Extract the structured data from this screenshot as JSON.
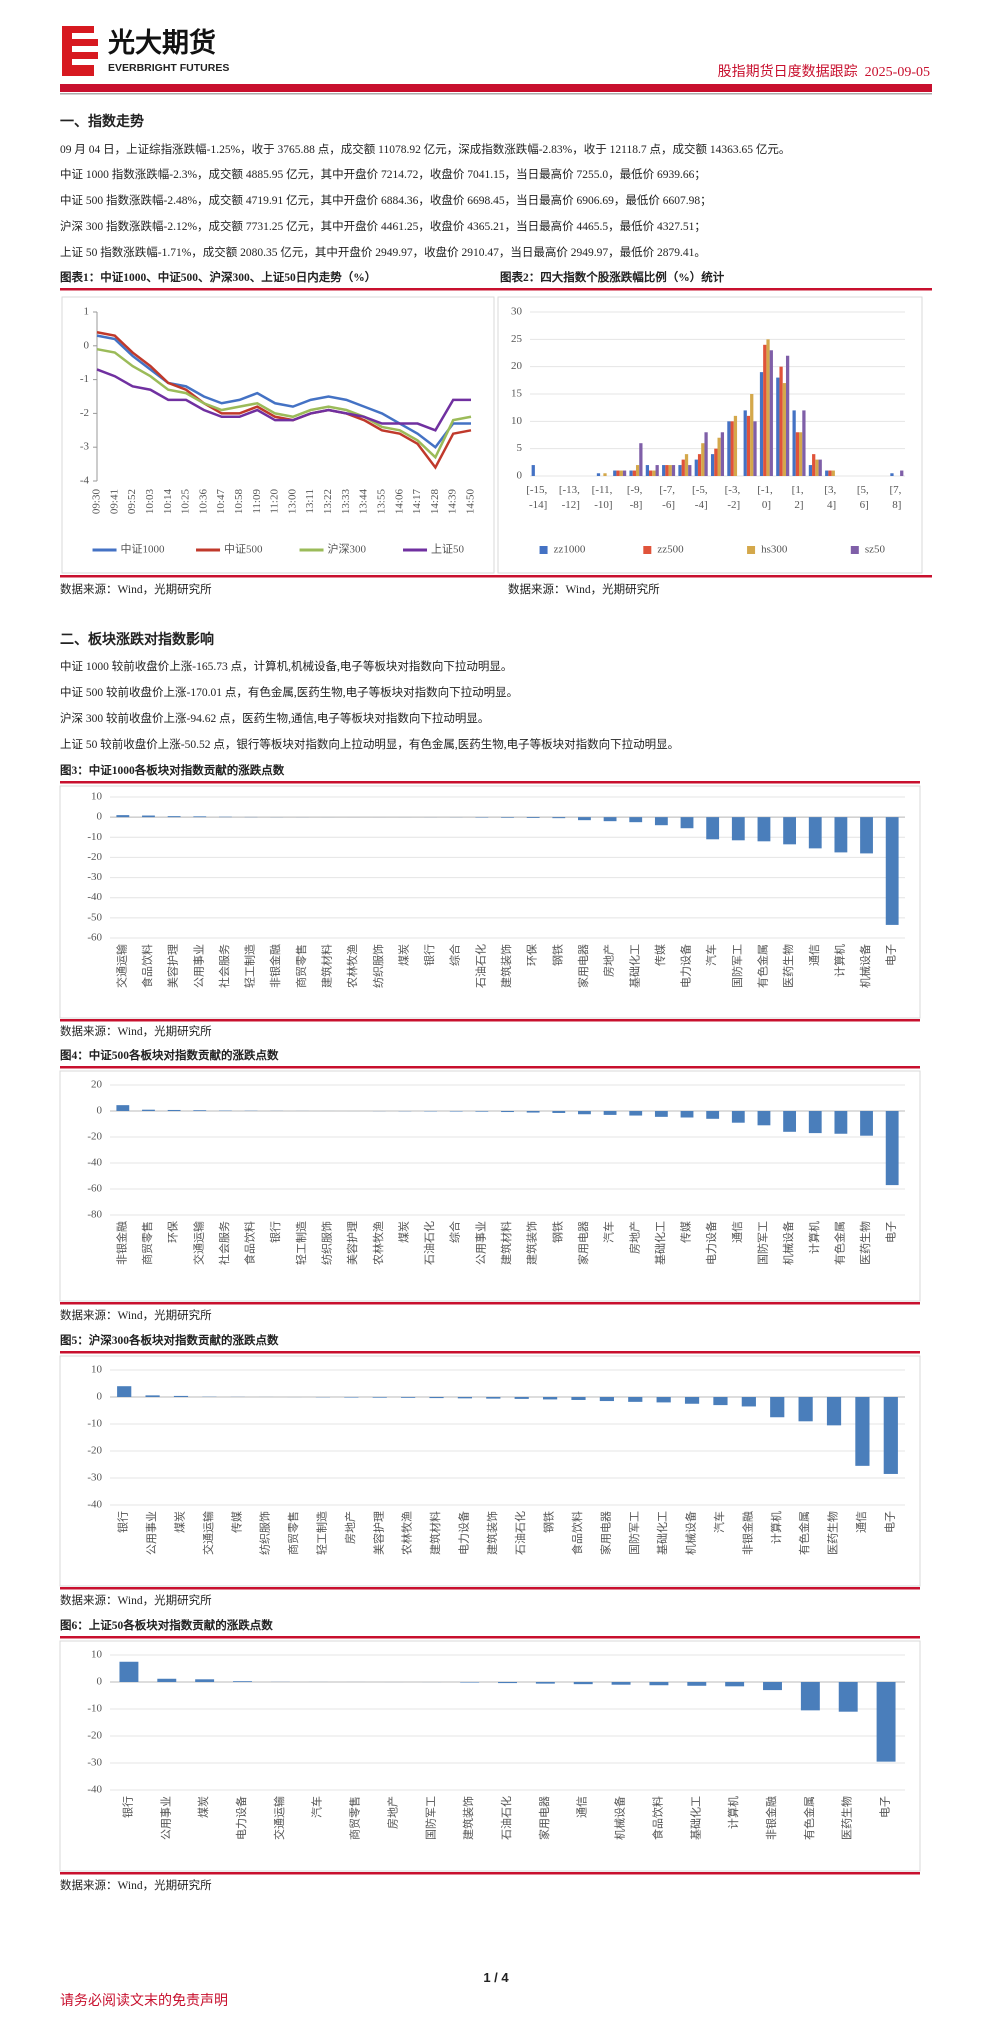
{
  "header": {
    "logo_cn": "光大期货",
    "logo_en": "EVERBRIGHT FUTURES",
    "report": "股指期货日度数据跟踪",
    "date": "2025-09-05"
  },
  "section1": {
    "title": "一、指数走势",
    "paragraphs": [
      "09 月 04 日，上证综指涨跌幅-1.25%，收于 3765.88 点，成交额 11078.92 亿元，深成指数涨跌幅-2.83%，收于 12118.7 点，成交额 14363.65 亿元。",
      "中证 1000 指数涨跌幅-2.3%，成交额 4885.95 亿元，其中开盘价 7214.72，收盘价 7041.15，当日最高价 7255.0，最低价 6939.66；",
      "中证 500 指数涨跌幅-2.48%，成交额 4719.91 亿元，其中开盘价 6884.36，收盘价 6698.45，当日最高价 6906.69，最低价 6607.98；",
      "沪深 300 指数涨跌幅-2.12%，成交额 7731.25 亿元，其中开盘价 4461.25，收盘价 4365.21，当日最高价 4465.5，最低价 4327.51；",
      "上证 50 指数涨跌幅-1.71%，成交额 2080.35 亿元，其中开盘价 2949.97，收盘价 2910.47，当日最高价 2949.97，最低价 2879.41。"
    ]
  },
  "section2": {
    "title": "二、板块涨跌对指数影响",
    "paragraphs": [
      "中证 1000 较前收盘价上涨-165.73 点，计算机,机械设备,电子等板块对指数向下拉动明显。",
      "中证 500 较前收盘价上涨-170.01 点，有色金属,医药生物,电子等板块对指数向下拉动明显。",
      "沪深 300 较前收盘价上涨-94.62 点，医药生物,通信,电子等板块对指数向下拉动明显。",
      "上证 50 较前收盘价上涨-50.52 点，银行等板块对指数向上拉动明显，有色金属,医药生物,电子等板块对指数向下拉动明显。"
    ]
  },
  "chart_data": [
    {
      "type": "line",
      "title": "图表1：中证1000、中证500、沪深300、上证50日内走势（%）",
      "source": "数据来源：Wind，光期研究所",
      "categories": [
        "09:30",
        "09:41",
        "09:52",
        "10:03",
        "10:14",
        "10:25",
        "10:36",
        "10:47",
        "10:58",
        "11:09",
        "11:20",
        "13:00",
        "13:11",
        "13:22",
        "13:33",
        "13:44",
        "13:55",
        "14:06",
        "14:17",
        "14:28",
        "14:39",
        "14:50"
      ],
      "series": [
        {
          "name": "中证1000",
          "color": "#4472c4",
          "values": [
            0.3,
            0.2,
            -0.3,
            -0.7,
            -1.1,
            -1.2,
            -1.5,
            -1.7,
            -1.6,
            -1.4,
            -1.7,
            -1.8,
            -1.6,
            -1.5,
            -1.6,
            -1.8,
            -2.0,
            -2.3,
            -2.6,
            -3.0,
            -2.3,
            -2.3
          ]
        },
        {
          "name": "中证500",
          "color": "#c0392b",
          "values": [
            0.4,
            0.3,
            -0.2,
            -0.6,
            -1.1,
            -1.3,
            -1.7,
            -2.0,
            -2.0,
            -1.8,
            -2.1,
            -2.2,
            -2.0,
            -1.9,
            -2.0,
            -2.2,
            -2.5,
            -2.6,
            -2.9,
            -3.6,
            -2.6,
            -2.5
          ]
        },
        {
          "name": "沪深300",
          "color": "#9bbb59",
          "values": [
            -0.1,
            -0.2,
            -0.6,
            -0.9,
            -1.3,
            -1.4,
            -1.7,
            -1.9,
            -1.8,
            -1.7,
            -2.0,
            -2.1,
            -1.9,
            -1.8,
            -1.9,
            -2.1,
            -2.4,
            -2.5,
            -2.8,
            -3.3,
            -2.2,
            -2.1
          ]
        },
        {
          "name": "上证50",
          "color": "#7030a0",
          "values": [
            -0.7,
            -0.9,
            -1.2,
            -1.3,
            -1.6,
            -1.6,
            -1.9,
            -2.1,
            -2.1,
            -1.9,
            -2.2,
            -2.2,
            -2.0,
            -1.9,
            -2.0,
            -2.1,
            -2.3,
            -2.3,
            -2.3,
            -2.5,
            -1.6,
            -1.6
          ]
        }
      ],
      "ylim": [
        -4,
        1
      ],
      "yticks": [
        -4,
        -3,
        -2,
        -1,
        0,
        1
      ],
      "grid": false,
      "legend": "bottom"
    },
    {
      "type": "bar",
      "title": "图表2：四大指数个股涨跌幅比例（%）统计",
      "source": "数据来源：Wind，光期研究所",
      "categories": [
        "[-15, -14]",
        null,
        "[-13, -12]",
        null,
        "[-11, -10]",
        null,
        "[-9, -8]",
        null,
        "[-7, -6]",
        null,
        "[-5, -4]",
        null,
        "[-3, -2]",
        null,
        "[-1, 0]",
        null,
        "[1, 2]",
        null,
        "[3, 4]",
        null,
        "[5, 6]",
        null,
        "[7, 8]"
      ],
      "series": [
        {
          "name": "zz1000",
          "color": "#4472c4",
          "values": [
            2,
            0,
            0,
            0,
            0.5,
            1,
            1,
            2,
            2,
            2,
            3,
            4,
            10,
            12,
            19,
            18,
            12,
            2,
            1,
            0,
            0,
            0,
            0.5
          ]
        },
        {
          "name": "zz500",
          "color": "#e0533a",
          "values": [
            0,
            0,
            0,
            0,
            0,
            1,
            1,
            1,
            2,
            3,
            4,
            5,
            10,
            11,
            24,
            20,
            8,
            4,
            1,
            0,
            0,
            0,
            0
          ]
        },
        {
          "name": "hs300",
          "color": "#d4a84b",
          "values": [
            0,
            0,
            0,
            0,
            0.5,
            1,
            2,
            1,
            2,
            4,
            6,
            7,
            11,
            15,
            25,
            17,
            8,
            3,
            1,
            0,
            0,
            0,
            0
          ]
        },
        {
          "name": "sz50",
          "color": "#7f5fa8",
          "values": [
            0,
            0,
            0,
            0,
            0,
            1,
            6,
            2,
            2,
            2,
            8,
            8,
            0,
            10,
            23,
            22,
            12,
            3,
            0,
            0,
            0,
            0,
            1
          ]
        }
      ],
      "ylim": [
        0,
        30
      ],
      "yticks": [
        0,
        5,
        10,
        15,
        20,
        25,
        30
      ],
      "grid": true,
      "legend": "bottom"
    },
    {
      "type": "bar",
      "title": "图3：中证1000各板块对指数贡献的涨跌点数",
      "source": "数据来源：Wind，光期研究所",
      "categories": [
        "交通运输",
        "食品饮料",
        "美容护理",
        "公用事业",
        "社会服务",
        "轻工制造",
        "非银金融",
        "商贸零售",
        "建筑材料",
        "农林牧渔",
        "纺织服饰",
        "煤炭",
        "银行",
        "综合",
        "石油石化",
        "建筑装饰",
        "环保",
        "钢铁",
        "家用电器",
        "房地产",
        "基础化工",
        "传媒",
        "电力设备",
        "汽车",
        "国防军工",
        "有色金属",
        "医药生物",
        "通信",
        "计算机",
        "机械设备",
        "电子"
      ],
      "values": [
        1.0,
        0.8,
        0.5,
        0.4,
        0.2,
        0.1,
        0.05,
        0.03,
        0.02,
        0.01,
        -0.01,
        -0.02,
        -0.03,
        -0.05,
        -0.2,
        -0.3,
        -0.4,
        -0.5,
        -1.5,
        -2,
        -2.5,
        -4,
        -5.5,
        -11,
        -11.5,
        -12,
        -13.5,
        -15.5,
        -17.5,
        -18,
        -53.5
      ],
      "color": "#4a7ebb",
      "ylim": [
        -60,
        10
      ],
      "yticks": [
        -60,
        -50,
        -40,
        -30,
        -20,
        -10,
        0,
        10
      ],
      "grid": true
    },
    {
      "type": "bar",
      "title": "图4：中证500各板块对指数贡献的涨跌点数",
      "source": "数据来源：Wind，光期研究所",
      "categories": [
        "非银金融",
        "商贸零售",
        "环保",
        "交通运输",
        "社会服务",
        "食品饮料",
        "银行",
        "轻工制造",
        "纺织服饰",
        "美容护理",
        "农林牧渔",
        "煤炭",
        "石油石化",
        "综合",
        "公用事业",
        "建筑材料",
        "建筑装饰",
        "钢铁",
        "家用电器",
        "汽车",
        "房地产",
        "基础化工",
        "传媒",
        "电力设备",
        "通信",
        "国防军工",
        "机械设备",
        "计算机",
        "有色金属",
        "医药生物",
        "电子"
      ],
      "values": [
        4.5,
        1,
        0.8,
        0.6,
        0.3,
        0.2,
        0.1,
        0.05,
        0.02,
        -0.02,
        -0.1,
        -0.2,
        -0.3,
        -0.4,
        -0.5,
        -0.8,
        -1.2,
        -1.5,
        -2.5,
        -3,
        -3.5,
        -4.5,
        -5,
        -6,
        -9,
        -11,
        -16,
        -17,
        -17.5,
        -19,
        -57
      ],
      "color": "#4a7ebb",
      "ylim": [
        -80,
        20
      ],
      "yticks": [
        -80,
        -60,
        -40,
        -20,
        0,
        20
      ],
      "grid": true
    },
    {
      "type": "bar",
      "title": "图5：沪深300各板块对指数贡献的涨跌点数",
      "source": "数据来源：Wind，光期研究所",
      "categories": [
        "银行",
        "公用事业",
        "煤炭",
        "交通运输",
        "传媒",
        "纺织服饰",
        "商贸零售",
        "轻工制造",
        "房地产",
        "美容护理",
        "农林牧渔",
        "建筑材料",
        "电力设备",
        "建筑装饰",
        "石油石化",
        "钢铁",
        "食品饮料",
        "家用电器",
        "国防军工",
        "基础化工",
        "机械设备",
        "汽车",
        "非银金融",
        "计算机",
        "有色金属",
        "医药生物",
        "通信",
        "电子"
      ],
      "values": [
        4,
        0.6,
        0.4,
        0.1,
        0.05,
        0.02,
        -0.02,
        -0.1,
        -0.2,
        -0.25,
        -0.3,
        -0.4,
        -0.5,
        -0.6,
        -0.7,
        -0.9,
        -1.1,
        -1.5,
        -1.8,
        -2,
        -2.5,
        -3,
        -3.5,
        -7.5,
        -9,
        -10.5,
        -25.5,
        -28.5
      ],
      "color": "#4a7ebb",
      "ylim": [
        -40,
        10
      ],
      "yticks": [
        -40,
        -30,
        -20,
        -10,
        0,
        10
      ],
      "grid": true
    },
    {
      "type": "bar",
      "title": "图6：上证50各板块对指数贡献的涨跌点数",
      "source": "数据来源：Wind，光期研究所",
      "categories": [
        "银行",
        "公用事业",
        "煤炭",
        "电力设备",
        "交通运输",
        "汽车",
        "商贸零售",
        "房地产",
        "国防军工",
        "建筑装饰",
        "石油石化",
        "家用电器",
        "通信",
        "机械设备",
        "食品饮料",
        "基础化工",
        "计算机",
        "非银金融",
        "有色金属",
        "医药生物",
        "电子"
      ],
      "values": [
        7.5,
        1.2,
        1,
        0.3,
        0.05,
        0.02,
        0.01,
        -0.01,
        -0.02,
        -0.2,
        -0.4,
        -0.6,
        -0.8,
        -1,
        -1.2,
        -1.4,
        -1.6,
        -3,
        -10.5,
        -11,
        -29.5
      ],
      "color": "#4a7ebb",
      "ylim": [
        -40,
        10
      ],
      "yticks": [
        -40,
        -30,
        -20,
        -10,
        0,
        10
      ],
      "grid": true
    }
  ],
  "footer": {
    "page": "1 / 4",
    "disclaimer": "请务必阅读文末的免责声明"
  }
}
